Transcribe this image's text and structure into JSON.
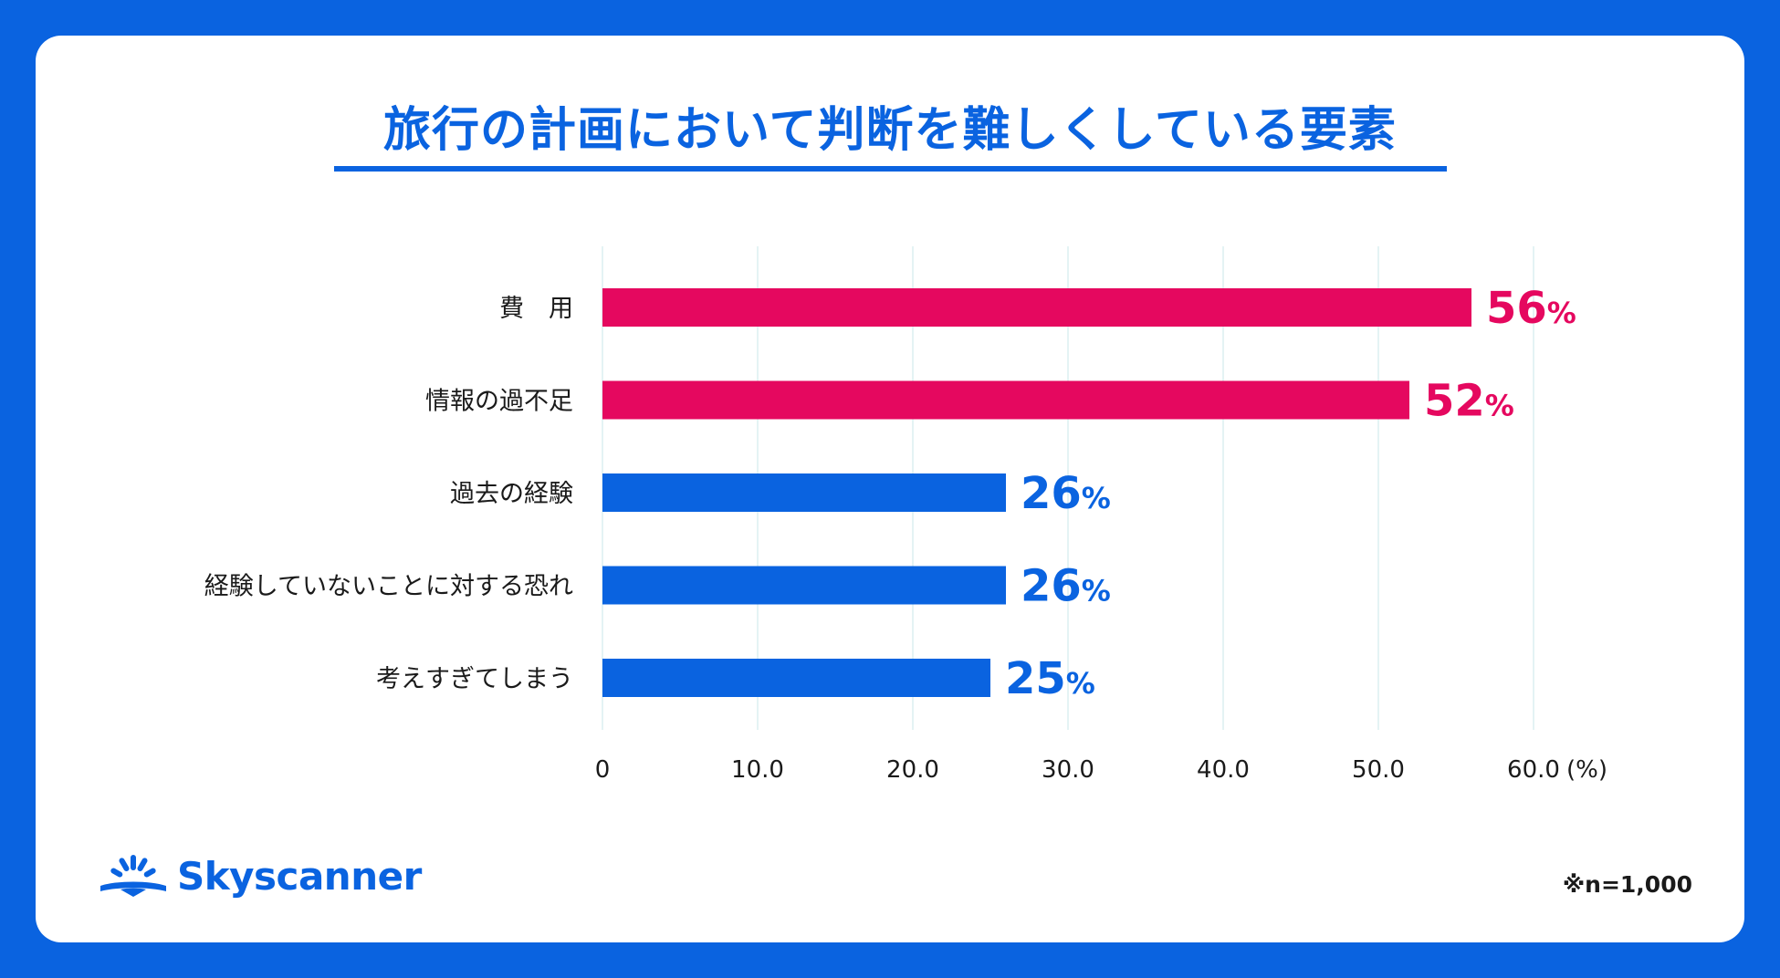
{
  "chart_data": {
    "type": "bar",
    "orientation": "horizontal",
    "title": "旅行の計画において判断を難しくしている要素",
    "categories": [
      "費　用",
      "情報の過不足",
      "過去の経験",
      "経験していないことに対する恐れ",
      "考えすぎてしまう"
    ],
    "values": [
      56,
      52,
      26,
      26,
      25
    ],
    "value_labels": [
      "56",
      "52",
      "26",
      "26",
      "25"
    ],
    "value_unit": "%",
    "bar_colors": [
      "#E5085F",
      "#E5085F",
      "#0A63E0",
      "#0A63E0",
      "#0A63E0"
    ],
    "xlim": [
      0,
      60
    ],
    "xticks": [
      0,
      10,
      20,
      30,
      40,
      50,
      60
    ],
    "xtick_labels": [
      "0",
      "10.0",
      "20.0",
      "30.0",
      "40.0",
      "50.0",
      "60.0"
    ],
    "xlabel": "(%)",
    "grid": "vertical"
  },
  "brand": {
    "name": "Skyscanner",
    "color": "#0A63E0",
    "icon": "sunrise-logo-icon"
  },
  "footnote": "※n=1,000",
  "colors": {
    "background": "#0A63E0",
    "card": "#FFFFFF",
    "highlight": "#E5085F",
    "primary": "#0A63E0"
  }
}
